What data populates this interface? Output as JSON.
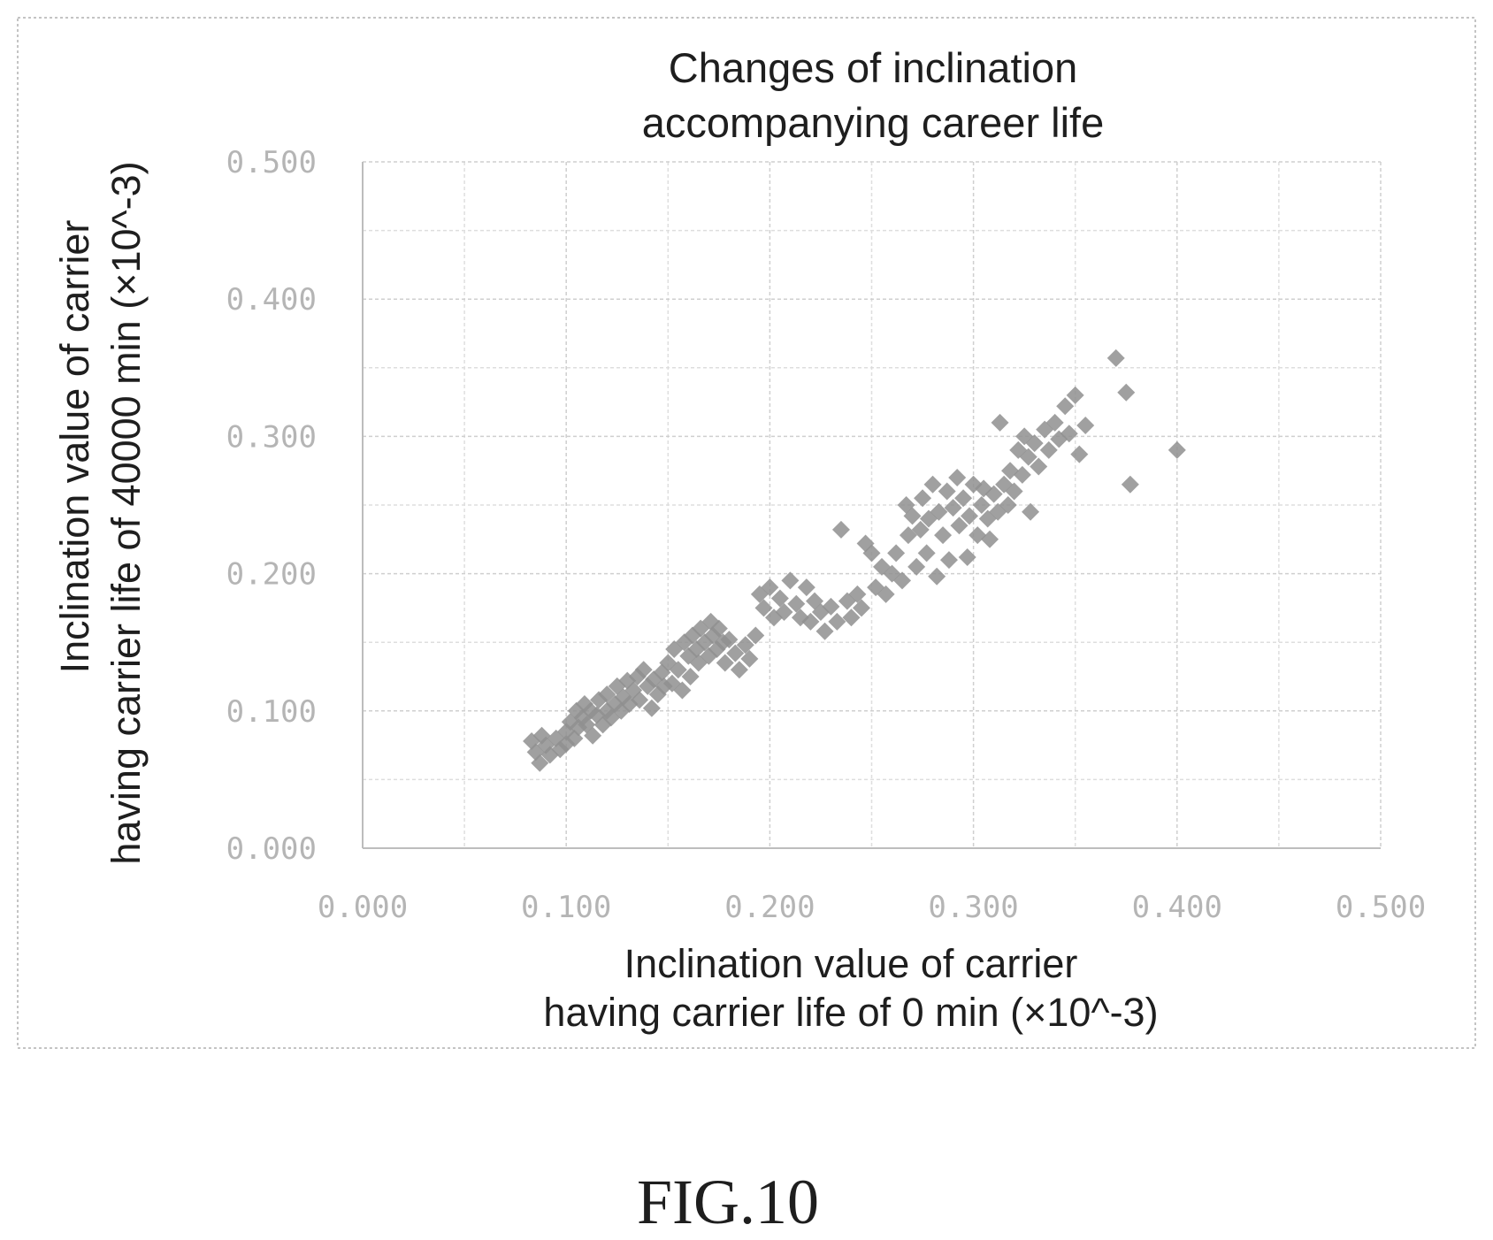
{
  "chart_data": {
    "type": "scatter",
    "title": [
      "Changes of inclination",
      "accompanying career life"
    ],
    "xlabel": [
      "Inclination value of carrier",
      "having carrier life of 0 min (×10^-3)"
    ],
    "ylabel": [
      "Inclination value of carrier",
      "having carrier life of 40000 min  (×10^-3)"
    ],
    "xlim": [
      0,
      0.5
    ],
    "ylim": [
      0,
      0.5
    ],
    "x_ticks": [
      0,
      0.1,
      0.2,
      0.3,
      0.4,
      0.5
    ],
    "y_ticks": [
      0,
      0.1,
      0.2,
      0.3,
      0.4,
      0.5
    ],
    "x_tick_labels": [
      "0.000",
      "0.100",
      "0.200",
      "0.300",
      "0.400",
      "0.500"
    ],
    "y_tick_labels": [
      "0.000",
      "0.100",
      "0.200",
      "0.300",
      "0.400",
      "0.500"
    ],
    "grid": true,
    "marker_color": "#8f8f8f",
    "series": [
      {
        "points": [
          [
            0.083,
            0.078
          ],
          [
            0.085,
            0.07
          ],
          [
            0.087,
            0.062
          ],
          [
            0.088,
            0.082
          ],
          [
            0.09,
            0.075
          ],
          [
            0.092,
            0.068
          ],
          [
            0.095,
            0.08
          ],
          [
            0.097,
            0.072
          ],
          [
            0.1,
            0.085
          ],
          [
            0.1,
            0.076
          ],
          [
            0.102,
            0.092
          ],
          [
            0.104,
            0.08
          ],
          [
            0.105,
            0.1
          ],
          [
            0.106,
            0.088
          ],
          [
            0.108,
            0.095
          ],
          [
            0.109,
            0.105
          ],
          [
            0.11,
            0.09
          ],
          [
            0.112,
            0.1
          ],
          [
            0.113,
            0.082
          ],
          [
            0.115,
            0.097
          ],
          [
            0.116,
            0.108
          ],
          [
            0.118,
            0.09
          ],
          [
            0.12,
            0.1
          ],
          [
            0.12,
            0.112
          ],
          [
            0.122,
            0.095
          ],
          [
            0.124,
            0.105
          ],
          [
            0.125,
            0.118
          ],
          [
            0.127,
            0.1
          ],
          [
            0.128,
            0.11
          ],
          [
            0.13,
            0.122
          ],
          [
            0.131,
            0.105
          ],
          [
            0.133,
            0.115
          ],
          [
            0.135,
            0.125
          ],
          [
            0.136,
            0.108
          ],
          [
            0.138,
            0.13
          ],
          [
            0.14,
            0.118
          ],
          [
            0.142,
            0.102
          ],
          [
            0.143,
            0.123
          ],
          [
            0.145,
            0.112
          ],
          [
            0.147,
            0.128
          ],
          [
            0.148,
            0.118
          ],
          [
            0.15,
            0.135
          ],
          [
            0.152,
            0.12
          ],
          [
            0.153,
            0.145
          ],
          [
            0.155,
            0.13
          ],
          [
            0.157,
            0.115
          ],
          [
            0.158,
            0.15
          ],
          [
            0.16,
            0.14
          ],
          [
            0.161,
            0.125
          ],
          [
            0.162,
            0.155
          ],
          [
            0.164,
            0.145
          ],
          [
            0.165,
            0.135
          ],
          [
            0.166,
            0.16
          ],
          [
            0.168,
            0.15
          ],
          [
            0.17,
            0.14
          ],
          [
            0.171,
            0.165
          ],
          [
            0.172,
            0.155
          ],
          [
            0.174,
            0.145
          ],
          [
            0.175,
            0.16
          ],
          [
            0.177,
            0.15
          ],
          [
            0.178,
            0.135
          ],
          [
            0.18,
            0.152
          ],
          [
            0.183,
            0.142
          ],
          [
            0.185,
            0.13
          ],
          [
            0.188,
            0.148
          ],
          [
            0.19,
            0.138
          ],
          [
            0.193,
            0.155
          ],
          [
            0.195,
            0.185
          ],
          [
            0.197,
            0.175
          ],
          [
            0.2,
            0.19
          ],
          [
            0.202,
            0.168
          ],
          [
            0.205,
            0.182
          ],
          [
            0.207,
            0.172
          ],
          [
            0.21,
            0.195
          ],
          [
            0.213,
            0.178
          ],
          [
            0.215,
            0.168
          ],
          [
            0.218,
            0.19
          ],
          [
            0.22,
            0.165
          ],
          [
            0.222,
            0.18
          ],
          [
            0.225,
            0.172
          ],
          [
            0.227,
            0.158
          ],
          [
            0.23,
            0.176
          ],
          [
            0.233,
            0.165
          ],
          [
            0.235,
            0.232
          ],
          [
            0.238,
            0.18
          ],
          [
            0.24,
            0.168
          ],
          [
            0.243,
            0.185
          ],
          [
            0.245,
            0.175
          ],
          [
            0.247,
            0.222
          ],
          [
            0.25,
            0.215
          ],
          [
            0.252,
            0.19
          ],
          [
            0.255,
            0.205
          ],
          [
            0.257,
            0.185
          ],
          [
            0.26,
            0.2
          ],
          [
            0.262,
            0.215
          ],
          [
            0.265,
            0.195
          ],
          [
            0.267,
            0.25
          ],
          [
            0.268,
            0.228
          ],
          [
            0.27,
            0.242
          ],
          [
            0.272,
            0.205
          ],
          [
            0.274,
            0.232
          ],
          [
            0.275,
            0.255
          ],
          [
            0.277,
            0.215
          ],
          [
            0.278,
            0.24
          ],
          [
            0.28,
            0.265
          ],
          [
            0.282,
            0.198
          ],
          [
            0.283,
            0.245
          ],
          [
            0.285,
            0.228
          ],
          [
            0.287,
            0.26
          ],
          [
            0.288,
            0.21
          ],
          [
            0.29,
            0.248
          ],
          [
            0.292,
            0.27
          ],
          [
            0.293,
            0.235
          ],
          [
            0.295,
            0.255
          ],
          [
            0.297,
            0.212
          ],
          [
            0.298,
            0.242
          ],
          [
            0.3,
            0.265
          ],
          [
            0.302,
            0.228
          ],
          [
            0.304,
            0.25
          ],
          [
            0.305,
            0.262
          ],
          [
            0.307,
            0.24
          ],
          [
            0.308,
            0.225
          ],
          [
            0.31,
            0.258
          ],
          [
            0.312,
            0.245
          ],
          [
            0.313,
            0.31
          ],
          [
            0.315,
            0.265
          ],
          [
            0.317,
            0.25
          ],
          [
            0.318,
            0.275
          ],
          [
            0.32,
            0.26
          ],
          [
            0.322,
            0.29
          ],
          [
            0.324,
            0.272
          ],
          [
            0.325,
            0.3
          ],
          [
            0.327,
            0.285
          ],
          [
            0.328,
            0.245
          ],
          [
            0.33,
            0.295
          ],
          [
            0.332,
            0.278
          ],
          [
            0.335,
            0.305
          ],
          [
            0.337,
            0.29
          ],
          [
            0.34,
            0.31
          ],
          [
            0.342,
            0.298
          ],
          [
            0.345,
            0.322
          ],
          [
            0.347,
            0.302
          ],
          [
            0.35,
            0.33
          ],
          [
            0.352,
            0.287
          ],
          [
            0.355,
            0.308
          ],
          [
            0.37,
            0.357
          ],
          [
            0.375,
            0.332
          ],
          [
            0.377,
            0.265
          ],
          [
            0.4,
            0.29
          ]
        ]
      }
    ]
  },
  "figure_label": "FIG.10"
}
